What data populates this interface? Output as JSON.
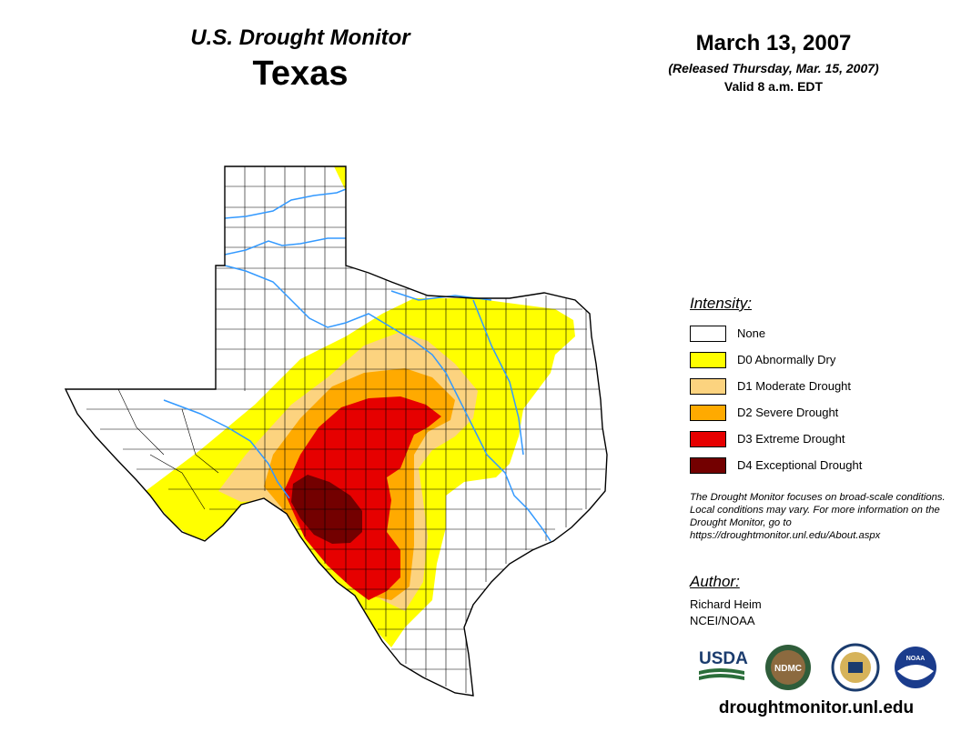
{
  "header": {
    "product_title": "U.S. Drought Monitor",
    "region": "Texas",
    "date": "March 13, 2007",
    "release_note": "(Released Thursday, Mar. 15, 2007)",
    "valid_time": "Valid 8 a.m. EDT"
  },
  "legend": {
    "title": "Intensity:",
    "items": [
      {
        "label": "None",
        "color": "#ffffff"
      },
      {
        "label": "D0 Abnormally Dry",
        "color": "#ffff00"
      },
      {
        "label": "D1 Moderate Drought",
        "color": "#fcd37f"
      },
      {
        "label": "D2 Severe Drought",
        "color": "#ffaa00"
      },
      {
        "label": "D3 Extreme Drought",
        "color": "#e60000"
      },
      {
        "label": "D4 Exceptional Drought",
        "color": "#730000"
      }
    ]
  },
  "note": "The Drought Monitor focuses on broad-scale conditions. Local conditions may vary. For more information on the Drought Monitor, go to https://droughtmonitor.unl.edu/About.aspx",
  "author": {
    "title": "Author:",
    "name": "Richard Heim",
    "org": "NCEI/NOAA"
  },
  "logos": {
    "usda": "USDA",
    "ndmc": "NDMC",
    "noaa": "NOAA"
  },
  "website": "droughtmonitor.unl.edu",
  "colors": {
    "river": "#3399ff",
    "boundary": "#000000"
  }
}
